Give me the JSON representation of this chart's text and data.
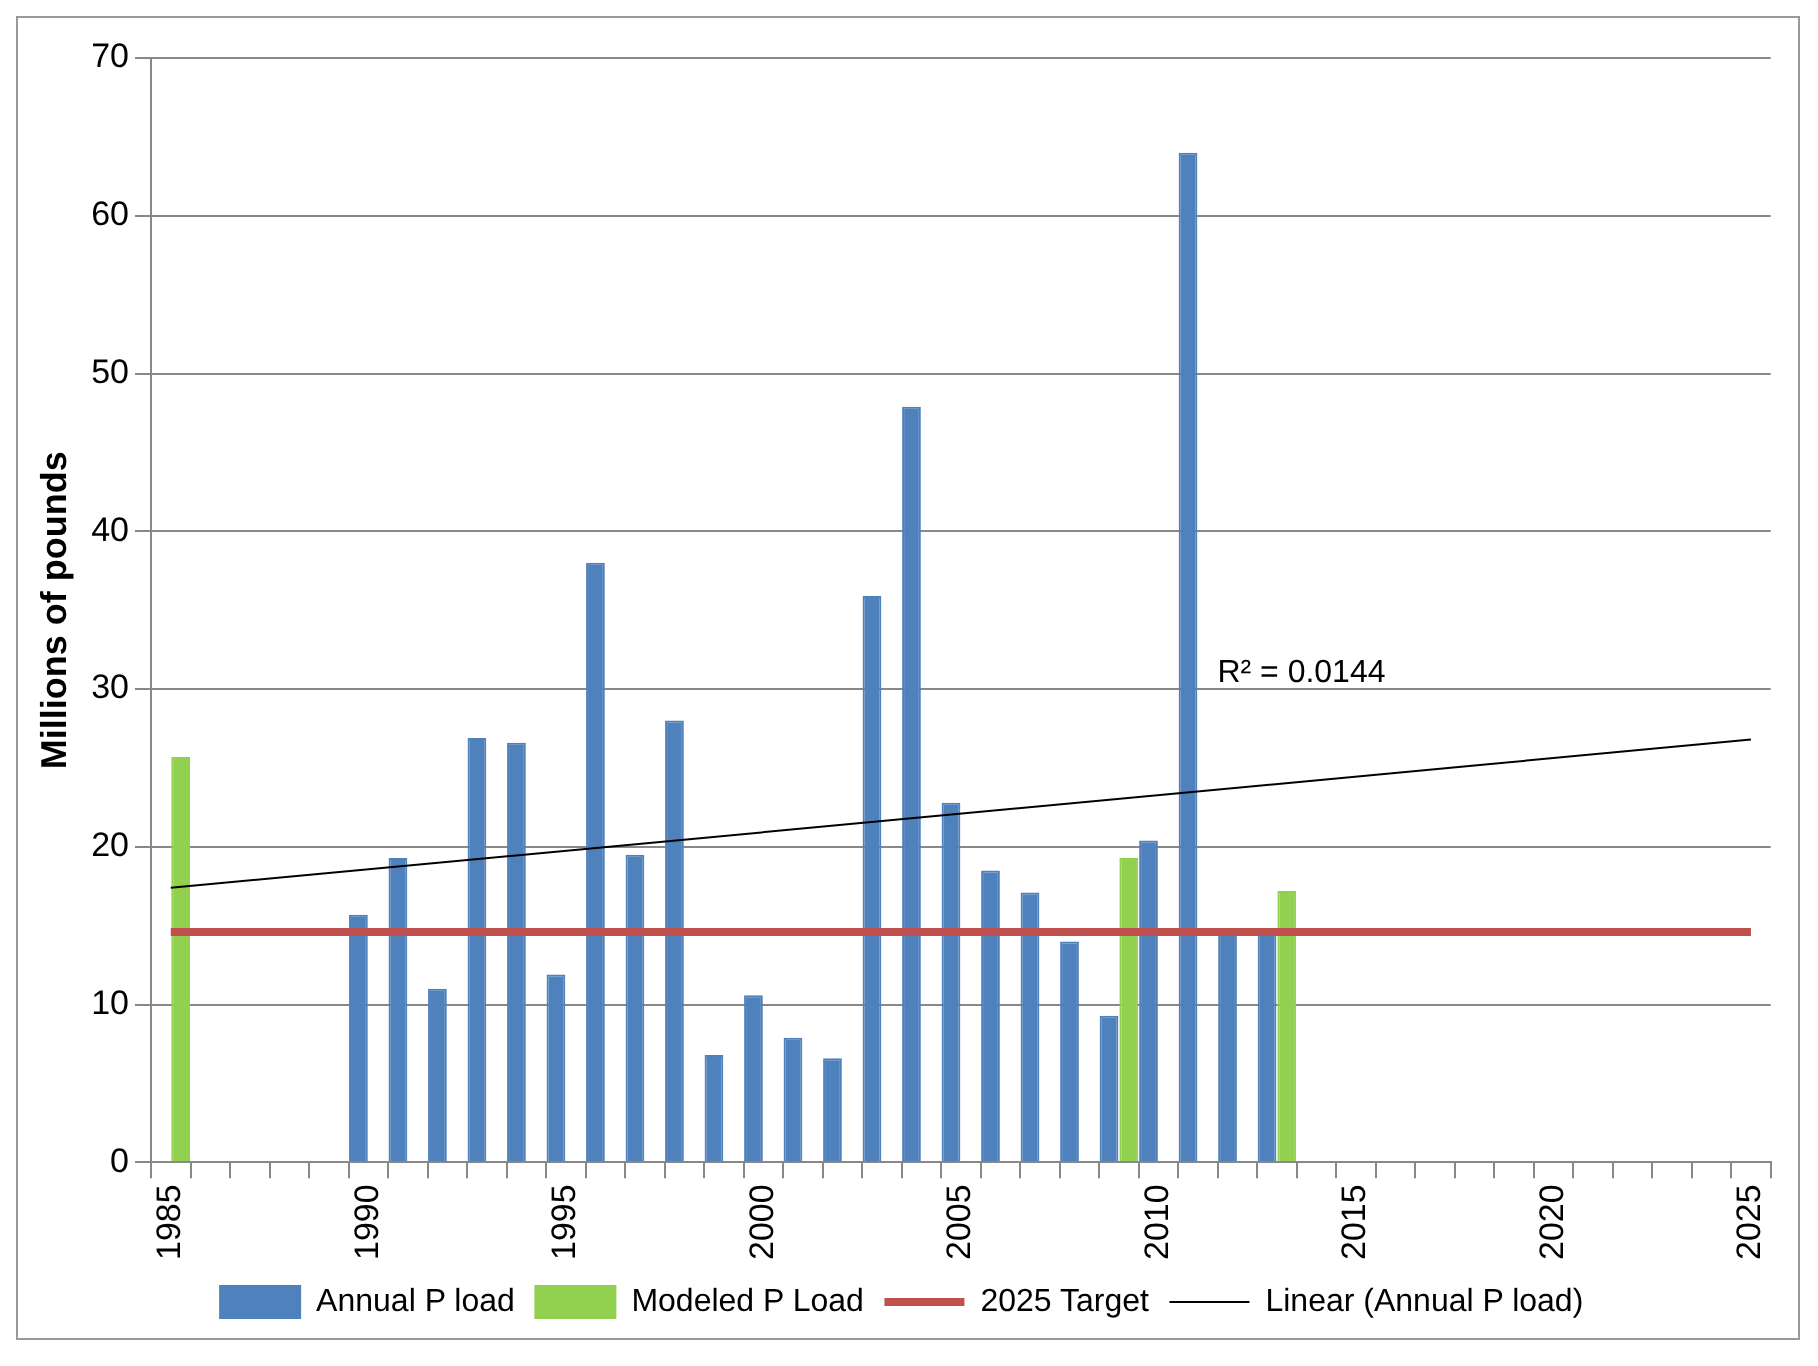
{
  "chart_data": {
    "type": "bar",
    "ylabel": "Millions of pounds",
    "categories": [
      "1985",
      null,
      null,
      null,
      null,
      "1990",
      null,
      null,
      null,
      null,
      "1995",
      null,
      null,
      null,
      null,
      "2000",
      null,
      null,
      null,
      null,
      "2005",
      null,
      null,
      null,
      null,
      "2010",
      null,
      null,
      null,
      null,
      "2015",
      null,
      null,
      null,
      null,
      "2020",
      null,
      null,
      null,
      null,
      "2025"
    ],
    "series": [
      {
        "name": "Annual P load",
        "color": "#4f81bd",
        "values": [
          null,
          null,
          null,
          null,
          null,
          15.7,
          19.3,
          11.0,
          26.9,
          26.6,
          11.9,
          38.0,
          19.5,
          28.0,
          6.8,
          10.6,
          7.9,
          6.6,
          35.9,
          47.9,
          22.8,
          18.5,
          17.1,
          14.0,
          9.3,
          20.4,
          64.0,
          14.6,
          14.6,
          null,
          null,
          null,
          null,
          null,
          null,
          null,
          null,
          null,
          null,
          null,
          null
        ]
      },
      {
        "name": "Modeled P Load",
        "color": "#92d050",
        "values": [
          25.7,
          null,
          null,
          null,
          null,
          null,
          null,
          null,
          null,
          null,
          null,
          null,
          null,
          null,
          null,
          null,
          null,
          null,
          null,
          null,
          null,
          null,
          null,
          null,
          19.3,
          null,
          null,
          null,
          17.2,
          null,
          null,
          null,
          null,
          null,
          null,
          null,
          null,
          null,
          null,
          null,
          null
        ]
      },
      {
        "name": "2025 Target",
        "type": "line",
        "color": "#c0504d",
        "values": [
          14.6,
          null,
          null,
          null,
          null,
          null,
          null,
          null,
          null,
          null,
          null,
          null,
          null,
          null,
          null,
          null,
          null,
          null,
          null,
          null,
          null,
          null,
          null,
          null,
          null,
          null,
          null,
          null,
          null,
          null,
          null,
          null,
          null,
          null,
          null,
          null,
          null,
          null,
          null,
          null,
          14.6
        ]
      },
      {
        "name": "Linear (Annual P load)",
        "type": "line",
        "color": "#000000",
        "values": [
          17.4,
          null,
          null,
          null,
          null,
          null,
          null,
          null,
          null,
          null,
          null,
          null,
          null,
          null,
          null,
          null,
          null,
          null,
          null,
          null,
          null,
          null,
          null,
          null,
          null,
          null,
          null,
          null,
          null,
          null,
          null,
          null,
          null,
          null,
          null,
          null,
          null,
          null,
          null,
          null,
          26.8
        ]
      }
    ],
    "annotations": [
      "R² = 0.0144"
    ],
    "ylim": [
      0,
      70
    ],
    "yticks": [
      0,
      10,
      20,
      30,
      40,
      50,
      60,
      70
    ],
    "grid": "y",
    "legend": "bottom"
  }
}
